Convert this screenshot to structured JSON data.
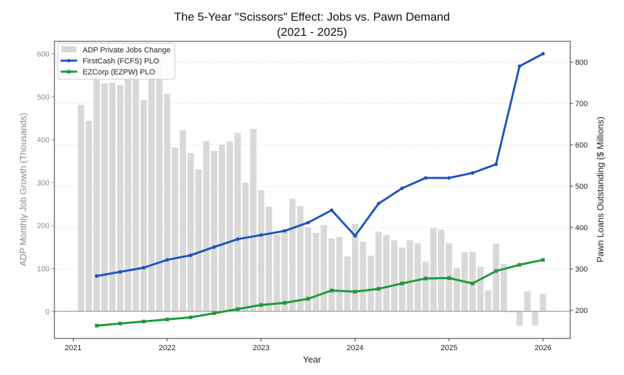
{
  "chart_data": {
    "type": "bar+line",
    "title": "The 5-Year \"Scissors\" Effect: Jobs vs. Pawn Demand",
    "subtitle": "(2021 - 2025)",
    "xlabel": "Year",
    "ylabel_left": "ADP Monthly Job Growth (Thousands)",
    "ylabel_right": "Pawn Loans Outstanding ($ Millions)",
    "xlim": [
      2020.8,
      2026.29
    ],
    "ylim_left": [
      -63,
      629
    ],
    "ylim_right": [
      132,
      850
    ],
    "x_ticks": [
      "2021",
      "2022",
      "2023",
      "2024",
      "2025",
      "2026"
    ],
    "y_ticks_left": [
      "0",
      "100",
      "200",
      "300",
      "400",
      "500",
      "600"
    ],
    "y_ticks_right": [
      "200",
      "300",
      "400",
      "500",
      "600",
      "700",
      "800"
    ],
    "grid": "horizontal dashed at right-axis ticks",
    "legend_placement": "top-left",
    "colors": {
      "bars": "#d9d9d9",
      "firstcash": "#1a54c0",
      "ezcorp": "#1a9a3a",
      "zero_line": "#8a8a8a"
    },
    "bars": {
      "name": "ADP Private Jobs Change",
      "months": [
        "2021-02",
        "2021-03",
        "2021-04",
        "2021-05",
        "2021-06",
        "2021-07",
        "2021-08",
        "2021-09",
        "2021-10",
        "2021-11",
        "2021-12",
        "2022-01",
        "2022-02",
        "2022-03",
        "2022-04",
        "2022-05",
        "2022-06",
        "2022-07",
        "2022-08",
        "2022-09",
        "2022-10",
        "2022-11",
        "2022-12",
        "2023-01",
        "2023-02",
        "2023-03",
        "2023-04",
        "2023-05",
        "2023-06",
        "2023-07",
        "2023-08",
        "2023-09",
        "2023-10",
        "2023-11",
        "2023-12",
        "2024-01",
        "2024-02",
        "2024-03",
        "2024-04",
        "2024-05",
        "2024-06",
        "2024-07",
        "2024-08",
        "2024-09",
        "2024-10",
        "2024-11",
        "2024-12",
        "2025-01",
        "2025-02",
        "2025-03",
        "2025-04",
        "2025-05",
        "2025-06",
        "2025-07",
        "2025-08",
        "2025-09",
        "2025-10",
        "2025-11",
        "2025-12",
        "2026-01"
      ],
      "values": [
        481,
        444,
        570,
        531,
        533,
        527,
        590,
        600,
        493,
        560,
        590,
        507,
        382,
        422,
        369,
        331,
        397,
        374,
        388,
        396,
        416,
        300,
        425,
        282,
        244,
        180,
        191,
        262,
        245,
        196,
        183,
        201,
        170,
        173,
        128,
        204,
        162,
        130,
        186,
        178,
        166,
        149,
        166,
        159,
        116,
        194,
        191,
        159,
        101,
        138,
        139,
        104,
        49,
        158,
        111,
        -2,
        -33,
        47,
        -33,
        41
      ]
    },
    "series": [
      {
        "name": "FirstCash (FCFS) PLO",
        "dates": [
          "2021-04",
          "2021-07",
          "2021-10",
          "2022-01",
          "2022-04",
          "2022-07",
          "2022-10",
          "2023-01",
          "2023-04",
          "2023-07",
          "2023-10",
          "2024-01",
          "2024-04",
          "2024-07",
          "2024-10",
          "2025-01",
          "2025-04",
          "2025-07",
          "2025-10",
          "2026-01"
        ],
        "values": [
          283,
          293,
          303,
          322,
          333,
          353,
          372,
          382,
          392,
          412,
          442,
          380,
          458,
          495,
          520,
          520,
          532,
          553,
          790,
          820
        ]
      },
      {
        "name": "EZCorp (EZPW) PLO",
        "dates": [
          "2021-04",
          "2021-07",
          "2021-10",
          "2022-01",
          "2022-04",
          "2022-07",
          "2022-10",
          "2023-01",
          "2023-04",
          "2023-07",
          "2023-10",
          "2024-01",
          "2024-04",
          "2024-07",
          "2024-10",
          "2025-01",
          "2025-04",
          "2025-07",
          "2025-10",
          "2026-01"
        ],
        "values": [
          163,
          168,
          173,
          178,
          183,
          193,
          203,
          213,
          218,
          228,
          248,
          245,
          252,
          265,
          277,
          278,
          265,
          295,
          310,
          322
        ]
      }
    ]
  }
}
